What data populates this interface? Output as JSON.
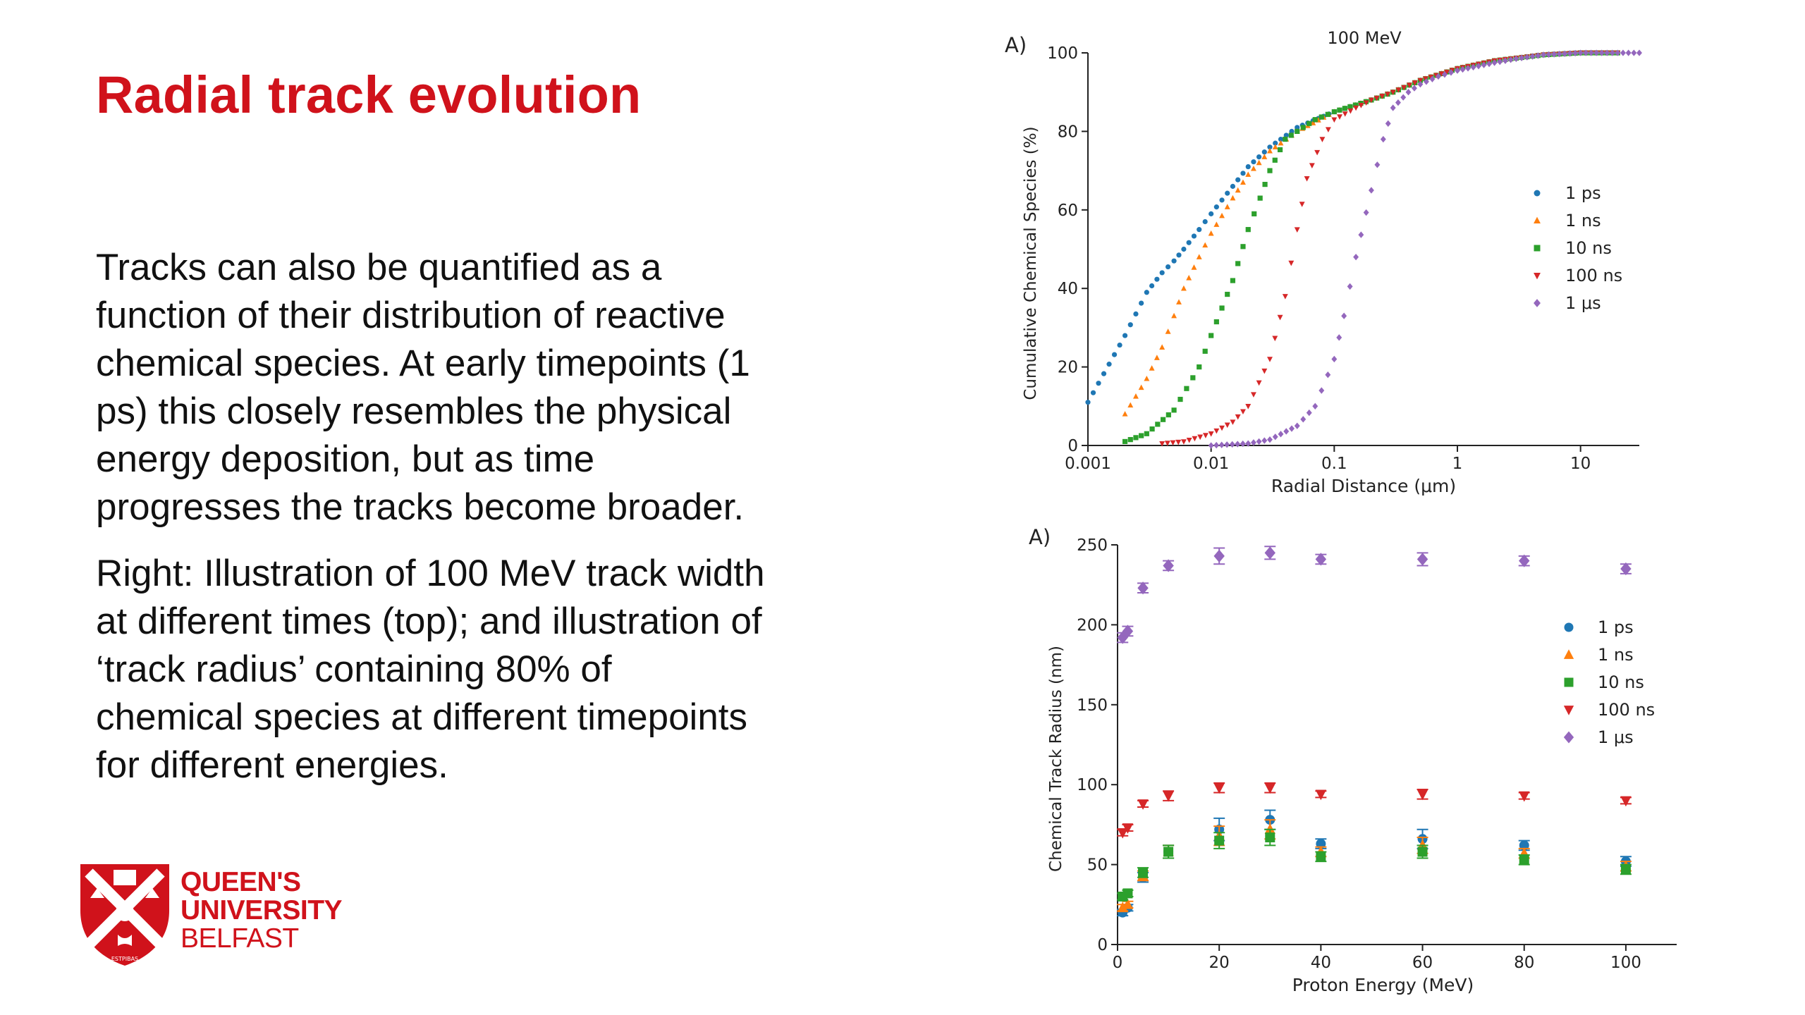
{
  "slide": {
    "title": "Radial track evolution",
    "paragraphs": [
      "Tracks can also be quantified as a function of their distribution of reactive chemical species. At early timepoints (1 ps) this closely resembles the physical energy deposition, but as time progresses the tracks become broader.",
      "Right: Illustration of 100 MeV track width at different times (top); and illustration of ‘track radius’ containing 80% of chemical species at different timepoints for different energies."
    ],
    "logo": {
      "line1": "QUEEN'S",
      "line2": "UNIVERSITY",
      "line3": "BELFAST",
      "crest_motto": "ESTPIBAS",
      "brand_color": "#d0121b"
    }
  },
  "chart_data": [
    {
      "panel_label": "A)",
      "type": "scatter",
      "title": "100 MeV",
      "xlabel": "Radial Distance (μm)",
      "ylabel": "Cumulative Chemical Species (%)",
      "xscale": "log",
      "xlim": [
        0.001,
        30
      ],
      "ylim": [
        0,
        100
      ],
      "xticks": [
        0.001,
        0.01,
        0.1,
        1,
        10
      ],
      "xtick_labels": [
        "0.001",
        "0.01",
        "0.1",
        "1",
        "10"
      ],
      "yticks": [
        0,
        20,
        40,
        60,
        80,
        100
      ],
      "ytick_labels": [
        "0",
        "20",
        "40",
        "60",
        "80",
        "100"
      ],
      "grid": false,
      "legend": "right",
      "series": [
        {
          "name": "1 ps",
          "color": "#1f77b4",
          "marker": "circle",
          "x": [
            0.001,
            0.002,
            0.003,
            0.004,
            0.005,
            0.006,
            0.008,
            0.01,
            0.015,
            0.02,
            0.03,
            0.05,
            0.1,
            0.2,
            0.3,
            0.5,
            1,
            2,
            5,
            10,
            20
          ],
          "y": [
            11,
            28,
            39,
            44,
            47,
            50,
            55,
            59,
            66,
            71,
            76,
            81,
            85,
            88,
            90,
            93,
            96,
            98,
            99.5,
            100,
            100
          ]
        },
        {
          "name": "1 ns",
          "color": "#ff7f0e",
          "marker": "triangle",
          "x": [
            0.002,
            0.003,
            0.004,
            0.005,
            0.006,
            0.008,
            0.01,
            0.015,
            0.02,
            0.03,
            0.05,
            0.1,
            0.2,
            0.3,
            0.5,
            1,
            2,
            5,
            10,
            20
          ],
          "y": [
            8,
            17,
            25,
            33,
            40,
            48,
            54,
            63,
            69,
            75,
            80,
            85,
            88,
            90,
            93,
            96,
            98,
            99.5,
            100,
            100
          ]
        },
        {
          "name": "10 ns",
          "color": "#2ca02c",
          "marker": "square",
          "x": [
            0.002,
            0.003,
            0.005,
            0.008,
            0.01,
            0.015,
            0.02,
            0.025,
            0.03,
            0.04,
            0.05,
            0.07,
            0.1,
            0.2,
            0.3,
            0.5,
            1,
            2,
            5,
            10,
            20
          ],
          "y": [
            1,
            3,
            9,
            20,
            28,
            42,
            55,
            63,
            70,
            78,
            80,
            83,
            85,
            88,
            90,
            93,
            96,
            98,
            99.5,
            100,
            100
          ]
        },
        {
          "name": "100 ns",
          "color": "#d62728",
          "marker": "triangle-down",
          "x": [
            0.004,
            0.006,
            0.01,
            0.015,
            0.02,
            0.03,
            0.04,
            0.05,
            0.06,
            0.08,
            0.1,
            0.15,
            0.2,
            0.3,
            0.5,
            1,
            2,
            5,
            10,
            20
          ],
          "y": [
            0.5,
            1,
            3,
            6,
            10,
            22,
            38,
            55,
            68,
            78,
            83,
            86,
            88,
            90,
            93,
            96,
            98,
            99.5,
            100,
            100
          ]
        },
        {
          "name": "1 μs",
          "color": "#9467bd",
          "marker": "diamond",
          "x": [
            0.01,
            0.02,
            0.03,
            0.05,
            0.07,
            0.1,
            0.12,
            0.15,
            0.2,
            0.25,
            0.3,
            0.4,
            0.5,
            0.7,
            1,
            2,
            3,
            5,
            10,
            20,
            30
          ],
          "y": [
            0,
            0.5,
            1.5,
            5,
            10,
            22,
            33,
            48,
            65,
            78,
            86,
            90,
            92,
            94,
            95.5,
            97.5,
            98.5,
            99.5,
            100,
            100,
            100
          ]
        }
      ]
    },
    {
      "panel_label": "A)",
      "type": "scatter",
      "title": "",
      "xlabel": "Proton Energy (MeV)",
      "ylabel": "Chemical Track Radius (nm)",
      "xlim": [
        0,
        110
      ],
      "ylim": [
        0,
        250
      ],
      "xticks": [
        0,
        20,
        40,
        60,
        80,
        100
      ],
      "xtick_labels": [
        "0",
        "20",
        "40",
        "60",
        "80",
        "100"
      ],
      "yticks": [
        0,
        50,
        100,
        150,
        200,
        250
      ],
      "ytick_labels": [
        "0",
        "50",
        "100",
        "150",
        "200",
        "250"
      ],
      "grid": false,
      "legend": "right",
      "x": [
        1,
        2,
        5,
        10,
        20,
        30,
        40,
        60,
        80,
        100
      ],
      "series": [
        {
          "name": "1 ps",
          "color": "#1f77b4",
          "marker": "circle",
          "values": [
            20,
            23,
            42,
            58,
            72,
            78,
            63,
            66,
            62,
            52
          ],
          "error": [
            2,
            2,
            3,
            4,
            7,
            6,
            3,
            6,
            3,
            3
          ]
        },
        {
          "name": "1 ns",
          "color": "#ff7f0e",
          "marker": "triangle",
          "values": [
            23,
            25,
            43,
            58,
            68,
            72,
            58,
            62,
            57,
            49
          ],
          "error": [
            2,
            2,
            3,
            4,
            6,
            6,
            3,
            5,
            3,
            3
          ]
        },
        {
          "name": "10 ns",
          "color": "#2ca02c",
          "marker": "square",
          "values": [
            30,
            32,
            45,
            58,
            65,
            67,
            55,
            58,
            53,
            47
          ],
          "error": [
            2,
            2,
            3,
            4,
            5,
            5,
            3,
            4,
            3,
            3
          ]
        },
        {
          "name": "100 ns",
          "color": "#d62728",
          "marker": "triangle-down",
          "values": [
            70,
            73,
            88,
            93,
            98,
            98,
            94,
            94,
            93,
            90
          ],
          "error": [
            2,
            2,
            2,
            3,
            3,
            3,
            2,
            3,
            2,
            2
          ]
        },
        {
          "name": "1 μs",
          "color": "#9467bd",
          "marker": "diamond",
          "values": [
            192,
            196,
            223,
            237,
            243,
            245,
            241,
            241,
            240,
            235
          ],
          "error": [
            3,
            3,
            3,
            3,
            5,
            4,
            3,
            4,
            3,
            3
          ]
        }
      ]
    }
  ]
}
